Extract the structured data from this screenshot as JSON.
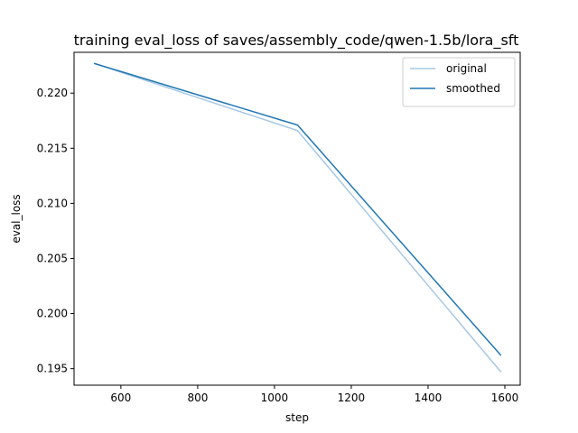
{
  "chart_data": {
    "type": "line",
    "title": "training eval_loss of saves/assembly_code/qwen-1.5b/lora_sft",
    "xlabel": "step",
    "ylabel": "eval_loss",
    "xlim": [
      478,
      1640
    ],
    "ylim": [
      0.1935,
      0.2237
    ],
    "xticks": [
      600,
      800,
      1000,
      1200,
      1400,
      1600
    ],
    "yticks": [
      0.195,
      0.2,
      0.205,
      0.21,
      0.215,
      0.22
    ],
    "grid": false,
    "legend_position": "upper-right",
    "series": [
      {
        "name": "original",
        "color": "#a6c8e5",
        "x": [
          530,
          1060,
          1590
        ],
        "y": [
          0.2227,
          0.2166,
          0.1947
        ]
      },
      {
        "name": "smoothed",
        "color": "#1f77b4",
        "x": [
          530,
          1060,
          1590
        ],
        "y": [
          0.2227,
          0.2171,
          0.1962
        ]
      }
    ]
  }
}
